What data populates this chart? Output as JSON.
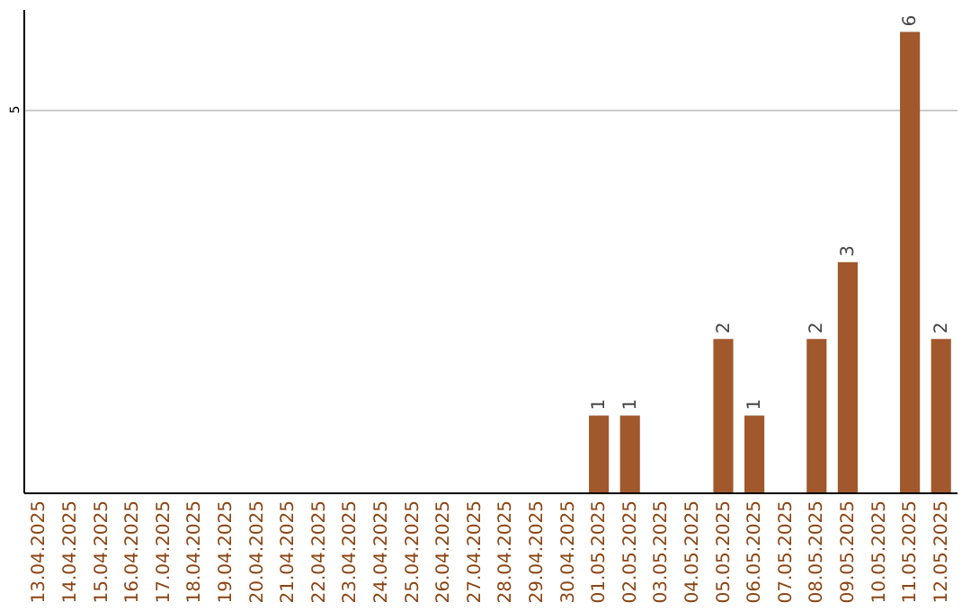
{
  "chart_data": {
    "type": "bar",
    "categories": [
      "13.04.2025",
      "14.04.2025",
      "15.04.2025",
      "16.04.2025",
      "17.04.2025",
      "18.04.2025",
      "19.04.2025",
      "20.04.2025",
      "21.04.2025",
      "22.04.2025",
      "23.04.2025",
      "24.04.2025",
      "25.04.2025",
      "26.04.2025",
      "27.04.2025",
      "28.04.2025",
      "29.04.2025",
      "30.04.2025",
      "01.05.2025",
      "02.05.2025",
      "03.05.2025",
      "04.05.2025",
      "05.05.2025",
      "06.05.2025",
      "07.05.2025",
      "08.05.2025",
      "09.05.2025",
      "10.05.2025",
      "11.05.2025",
      "12.05.2025"
    ],
    "values": [
      null,
      null,
      null,
      null,
      null,
      null,
      null,
      null,
      null,
      null,
      null,
      null,
      null,
      null,
      null,
      null,
      null,
      null,
      1,
      1,
      null,
      null,
      2,
      1,
      null,
      2,
      3,
      null,
      6,
      2
    ],
    "color": "#a0582c",
    "ylim": [
      0,
      6.3
    ],
    "yticks": [
      5
    ],
    "grid": "y",
    "data_labels": true
  }
}
